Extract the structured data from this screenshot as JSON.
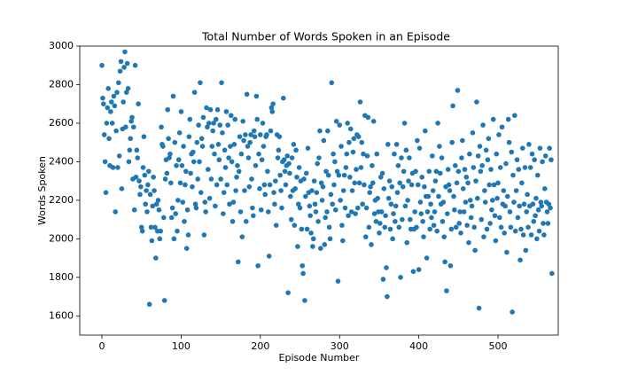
{
  "chart_data": {
    "type": "scatter",
    "title": "Total Number of Words Spoken in an Episode",
    "x_label": "Episode Number",
    "y_label": "Words Spoken",
    "color": "#1f77b4",
    "grid": false,
    "xlim": [
      -28,
      576
    ],
    "ylim": [
      1500,
      3000
    ],
    "xticks": [
      0,
      100,
      200,
      300,
      400,
      500
    ],
    "yticks": [
      1600,
      1800,
      2000,
      2200,
      2400,
      2600,
      2800,
      3000
    ],
    "x": [
      0,
      1,
      2,
      3,
      4,
      5,
      6,
      7,
      8,
      9,
      10,
      11,
      12,
      13,
      14,
      15,
      16,
      17,
      18,
      19,
      20,
      21,
      22,
      23,
      24,
      25,
      26,
      27,
      28,
      29,
      30,
      31,
      32,
      33,
      34,
      35,
      36,
      37,
      38,
      39,
      40,
      41,
      42,
      43,
      44,
      45,
      46,
      47,
      48,
      49,
      50,
      51,
      52,
      53,
      54,
      55,
      56,
      57,
      58,
      59,
      60,
      61,
      62,
      63,
      64,
      65,
      66,
      67,
      68,
      69,
      70,
      71,
      72,
      73,
      74,
      75,
      76,
      77,
      78,
      79,
      80,
      81,
      82,
      83,
      84,
      85,
      86,
      87,
      88,
      89,
      90,
      91,
      92,
      93,
      94,
      95,
      96,
      97,
      98,
      99,
      100,
      101,
      102,
      103,
      104,
      105,
      106,
      107,
      108,
      109,
      110,
      111,
      112,
      113,
      114,
      115,
      116,
      117,
      118,
      119,
      120,
      121,
      122,
      123,
      124,
      125,
      126,
      127,
      128,
      129,
      130,
      131,
      132,
      133,
      134,
      135,
      136,
      137,
      138,
      139,
      140,
      141,
      142,
      143,
      144,
      145,
      146,
      147,
      148,
      149,
      150,
      151,
      152,
      153,
      154,
      155,
      156,
      157,
      158,
      159,
      160,
      161,
      162,
      163,
      164,
      165,
      166,
      167,
      168,
      169,
      170,
      171,
      172,
      173,
      174,
      175,
      176,
      177,
      178,
      179,
      180,
      181,
      182,
      183,
      184,
      185,
      186,
      187,
      188,
      189,
      190,
      191,
      192,
      193,
      194,
      195,
      196,
      197,
      198,
      199,
      200,
      201,
      202,
      203,
      204,
      205,
      206,
      207,
      208,
      209,
      210,
      211,
      212,
      213,
      214,
      215,
      216,
      217,
      218,
      219,
      220,
      221,
      222,
      223,
      224,
      225,
      226,
      227,
      228,
      229,
      230,
      231,
      232,
      233,
      234,
      235,
      236,
      237,
      238,
      239,
      240,
      241,
      242,
      243,
      244,
      245,
      246,
      247,
      248,
      249,
      250,
      251,
      252,
      253,
      254,
      255,
      256,
      257,
      258,
      259,
      260,
      261,
      262,
      263,
      264,
      265,
      266,
      267,
      268,
      269,
      270,
      271,
      272,
      273,
      274,
      275,
      276,
      277,
      278,
      279,
      280,
      281,
      282,
      283,
      284,
      285,
      286,
      287,
      288,
      289,
      290,
      291,
      292,
      293,
      294,
      295,
      296,
      297,
      298,
      299,
      300,
      301,
      302,
      303,
      304,
      305,
      306,
      307,
      308,
      309,
      310,
      311,
      312,
      313,
      314,
      315,
      316,
      317,
      318,
      319,
      320,
      321,
      322,
      323,
      324,
      325,
      326,
      327,
      328,
      329,
      330,
      331,
      332,
      333,
      334,
      335,
      336,
      337,
      338,
      339,
      340,
      341,
      342,
      343,
      344,
      345,
      346,
      347,
      348,
      349,
      350,
      351,
      352,
      353,
      354,
      355,
      356,
      357,
      358,
      359,
      360,
      361,
      362,
      363,
      364,
      365,
      366,
      367,
      368,
      369,
      370,
      371,
      372,
      373,
      374,
      375,
      376,
      377,
      378,
      379,
      380,
      381,
      382,
      383,
      384,
      385,
      386,
      387,
      388,
      389,
      390,
      391,
      392,
      393,
      394,
      395,
      396,
      397,
      398,
      399,
      400,
      401,
      402,
      403,
      404,
      405,
      406,
      407,
      408,
      409,
      410,
      411,
      412,
      413,
      414,
      415,
      416,
      417,
      418,
      419,
      420,
      421,
      422,
      423,
      424,
      425,
      426,
      427,
      428,
      429,
      430,
      431,
      432,
      433,
      434,
      435,
      436,
      437,
      438,
      439,
      440,
      441,
      442,
      443,
      444,
      445,
      446,
      447,
      448,
      449,
      450,
      451,
      452,
      453,
      454,
      455,
      456,
      457,
      458,
      459,
      460,
      461,
      462,
      463,
      464,
      465,
      466,
      467,
      468,
      469,
      470,
      471,
      472,
      473,
      474,
      475,
      476,
      477,
      478,
      479,
      480,
      481,
      482,
      483,
      484,
      485,
      486,
      487,
      488,
      489,
      490,
      491,
      492,
      493,
      494,
      495,
      496,
      497,
      498,
      499,
      500,
      501,
      502,
      503,
      504,
      505,
      506,
      507,
      508,
      509,
      510,
      511,
      512,
      513,
      514,
      515,
      516,
      517,
      518,
      519,
      520,
      521,
      522,
      523,
      524,
      525,
      526,
      527,
      528,
      529,
      530,
      531,
      532,
      533,
      534,
      535,
      536,
      537,
      538,
      539,
      540,
      541,
      542,
      543,
      544,
      545,
      546,
      547,
      548,
      549,
      550,
      551,
      552,
      553,
      554,
      555,
      556,
      557,
      558,
      559,
      560,
      561,
      562,
      563,
      564,
      565,
      566,
      567,
      568
    ],
    "values": [
      2900,
      2730,
      2700,
      2540,
      2400,
      2240,
      2600,
      2680,
      2780,
      2520,
      2380,
      2660,
      2710,
      2600,
      2370,
      2740,
      2690,
      2140,
      2560,
      2760,
      2370,
      2810,
      2430,
      2870,
      2920,
      2260,
      2570,
      2710,
      2890,
      2970,
      2580,
      2760,
      2910,
      2780,
      2400,
      2460,
      2520,
      2610,
      2630,
      2310,
      2580,
      2150,
      2900,
      2320,
      2460,
      2420,
      2700,
      2300,
      2230,
      2270,
      2060,
      2040,
      2370,
      2530,
      2330,
      2180,
      2250,
      2140,
      2280,
      2350,
      1660,
      2230,
      2060,
      1990,
      2170,
      2320,
      2250,
      2060,
      1900,
      2180,
      2040,
      2200,
      2150,
      2000,
      2040,
      2580,
      2490,
      2480,
      2110,
      1680,
      2310,
      2410,
      2340,
      2670,
      2520,
      2420,
      2440,
      2290,
      2110,
      2160,
      2740,
      2000,
      2500,
      2130,
      2380,
      2040,
      2200,
      2410,
      2550,
      2290,
      2660,
      2380,
      2190,
      2480,
      2090,
      2280,
      2350,
      1950,
      2150,
      2020,
      2530,
      2620,
      2340,
      2440,
      2270,
      2450,
      2400,
      2760,
      2180,
      2160,
      2500,
      2310,
      2590,
      2400,
      2810,
      2240,
      2520,
      2480,
      2630,
      2020,
      2190,
      2140,
      2680,
      2580,
      2360,
      2600,
      2210,
      2670,
      2310,
      2480,
      2560,
      2600,
      2440,
      2170,
      2620,
      2280,
      2670,
      2490,
      2410,
      2590,
      2310,
      2810,
      2550,
      2130,
      2240,
      2460,
      2370,
      2660,
      2280,
      2590,
      2420,
      2180,
      2480,
      2640,
      2400,
      2090,
      2190,
      2490,
      2620,
      2250,
      2320,
      2380,
      1880,
      2350,
      2530,
      2140,
      2440,
      2010,
      2610,
      2510,
      2250,
      2540,
      2090,
      2750,
      2480,
      2420,
      2270,
      2500,
      2540,
      2310,
      2160,
      2120,
      2560,
      2530,
      2380,
      2740,
      2620,
      1860,
      2440,
      2260,
      2540,
      2150,
      2410,
      2600,
      2480,
      2280,
      2230,
      2530,
      2540,
      2350,
      2140,
      1910,
      2280,
      2560,
      2680,
      2660,
      2700,
      2240,
      2180,
      2300,
      2070,
      2540,
      2420,
      2460,
      2530,
      2330,
      2250,
      2160,
      2400,
      2730,
      2410,
      2350,
      2280,
      2380,
      2430,
      1720,
      2390,
      2340,
      2220,
      2100,
      2420,
      2250,
      2490,
      2070,
      2260,
      2460,
      2320,
      1960,
      2180,
      2370,
      2160,
      2300,
      2050,
      1860,
      1820,
      2310,
      1680,
      2220,
      2340,
      2050,
      2470,
      2240,
      2170,
      2120,
      2030,
      2250,
      1960,
      2000,
      2300,
      2180,
      2140,
      2240,
      2390,
      2090,
      2420,
      2560,
      1950,
      2290,
      2200,
      2270,
      2510,
      1970,
      2110,
      2350,
      2140,
      2560,
      2330,
      2060,
      2000,
      2230,
      2810,
      2180,
      2440,
      2280,
      2400,
      2150,
      2610,
      2350,
      1780,
      2330,
      2590,
      2200,
      2480,
      2070,
      1990,
      2250,
      2330,
      2160,
      2370,
      2440,
      2600,
      2120,
      2500,
      2320,
      2570,
      2140,
      2250,
      2450,
      2520,
      2290,
      2130,
      2360,
      2540,
      2160,
      2530,
      2290,
      2710,
      2370,
      2500,
      2180,
      2440,
      2280,
      2640,
      2010,
      2160,
      2430,
      2630,
      2060,
      2240,
      2270,
      1970,
      2380,
      2290,
      2610,
      2130,
      2200,
      2090,
      2440,
      2210,
      2140,
      2030,
      2080,
      2320,
      2140,
      2340,
      1790,
      2260,
      2060,
      2120,
      1850,
      1700,
      2490,
      2210,
      2300,
      2050,
      2180,
      2270,
      2000,
      2130,
      2440,
      2090,
      2170,
      2490,
      2240,
      2380,
      2060,
      2290,
      1800,
      2420,
      2100,
      2270,
      2350,
      2600,
      2170,
      2460,
      1980,
      2200,
      2300,
      2420,
      2100,
      2050,
      2280,
      2340,
      1830,
      2050,
      2140,
      2350,
      2060,
      2510,
      2280,
      1840,
      2470,
      2190,
      2130,
      2320,
      2090,
      2010,
      2270,
      2560,
      2220,
      1900,
      2140,
      2220,
      2350,
      2050,
      2180,
      2110,
      2430,
      2250,
      2070,
      2140,
      2300,
      2350,
      2040,
      2600,
      2220,
      2480,
      2340,
      2180,
      2420,
      2090,
      2190,
      2010,
      1880,
      2270,
      1730,
      2130,
      2360,
      2280,
      2250,
      1860,
      2050,
      2500,
      2690,
      2220,
      2150,
      2380,
      2060,
      2290,
      2770,
      2350,
      2080,
      2140,
      2030,
      2420,
      2510,
      2260,
      2140,
      2360,
      2190,
      2320,
      2070,
      2290,
      1980,
      2440,
      2200,
      2110,
      2170,
      2550,
      2370,
      2060,
      1940,
      2300,
      2710,
      2210,
      2430,
      1640,
      2480,
      2350,
      2100,
      2380,
      2590,
      2010,
      2250,
      2190,
      2460,
      2050,
      2410,
      2520,
      2280,
      2080,
      2360,
      2150,
      2200,
      2620,
      2280,
      2120,
      1990,
      2440,
      2210,
      2290,
      2540,
      2110,
      2370,
      2060,
      2580,
      2180,
      2250,
      2030,
      2170,
      2390,
      1930,
      2220,
      2620,
      2500,
      2140,
      2060,
      2450,
      1620,
      2330,
      2190,
      2640,
      2040,
      2250,
      2410,
      2110,
      2360,
      2170,
      1890,
      2050,
      2290,
      2470,
      2020,
      2180,
      2370,
      1940,
      2140,
      2230,
      2060,
      2490,
      2170,
      2370,
      2020,
      2440,
      2180,
      2090,
      2410,
      2120,
      2210,
      2000,
      2330,
      2150,
      2040,
      2470,
      2190,
      2170,
      2400,
      2080,
      2020,
      2260,
      2430,
      2190,
      2140,
      2080,
      2180,
      2470,
      2160,
      2410,
      1820
    ]
  }
}
